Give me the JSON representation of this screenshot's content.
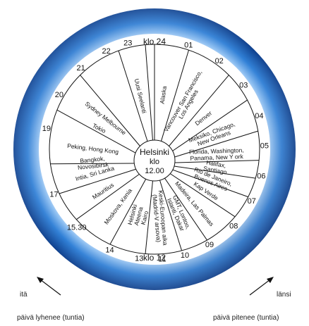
{
  "clock": {
    "top_label": "klo 24",
    "bottom_label": "klo 12",
    "hours": [
      {
        "label": "01",
        "deg": 18
      },
      {
        "label": "02",
        "deg": 36
      },
      {
        "label": "03",
        "deg": 54
      },
      {
        "label": "04",
        "deg": 72
      },
      {
        "label": "05",
        "deg": 88
      },
      {
        "label": "06",
        "deg": 104
      },
      {
        "label": "07",
        "deg": 118
      },
      {
        "label": "08",
        "deg": 134
      },
      {
        "label": "09",
        "deg": 150
      },
      {
        "label": "10",
        "deg": 164
      },
      {
        "label": "11",
        "deg": 176
      },
      {
        "label": "13",
        "deg": 188
      },
      {
        "label": "14",
        "deg": 204
      },
      {
        "label": "15.30",
        "deg": 225
      },
      {
        "label": "17",
        "deg": 246
      },
      {
        "label": "19",
        "deg": 281
      },
      {
        "label": "20",
        "deg": 300
      },
      {
        "label": "21",
        "deg": 318
      },
      {
        "label": "22",
        "deg": 334
      },
      {
        "label": "23",
        "deg": 346
      }
    ],
    "spokes_deg": [
      0,
      19,
      45,
      62,
      80,
      96,
      106,
      117,
      130,
      150,
      165,
      185,
      205,
      228,
      245,
      262,
      292,
      315,
      340,
      355
    ]
  },
  "center": {
    "city": "Helsinki",
    "klo": "klo",
    "time": "12.00"
  },
  "cities": [
    {
      "lines": [
        "Alaska"
      ],
      "deg": 8
    },
    {
      "lines": [
        "Vancouver San Francisco,",
        "Los Angeles"
      ],
      "deg": 30
    },
    {
      "lines": [
        "Denver"
      ],
      "deg": 52
    },
    {
      "lines": [
        "Meksiko, Chicago,",
        "New Orleans"
      ],
      "deg": 70
    },
    {
      "lines": [
        "Florida, Washington,",
        "Panama, New Y  ork"
      ],
      "deg": 88
    },
    {
      "lines": [
        "Halifax,",
        "Santiago"
      ],
      "deg": 100
    },
    {
      "lines": [
        "Rio de Janeiro,",
        "Buenos Aires"
      ],
      "deg": 112
    },
    {
      "lines": [
        "Kap Verde"
      ],
      "deg": 124
    },
    {
      "lines": [
        "Madeira, Las Palmas"
      ],
      "deg": 140
    },
    {
      "lines": [
        "GMT, Lontoo,",
        "Islanti, Dakar"
      ],
      "deg": 157
    },
    {
      "lines": [
        "Keski-Euroopan aika",
        "(Madrid-V  arsova)"
      ],
      "deg": 175
    },
    {
      "lines": [
        "Helsinki",
        "Ateena",
        "Kairo"
      ],
      "deg": 195
    },
    {
      "lines": [
        "Moskova, Kenia"
      ],
      "deg": 216
    },
    {
      "lines": [
        "Mauritius"
      ],
      "deg": 236
    },
    {
      "lines": [
        "Intia, Sri Lanka"
      ],
      "deg": 254
    },
    {
      "lines": [
        "Bangkok,",
        "Novosibirsk"
      ],
      "deg": 264
    },
    {
      "lines": [
        "Peking, Hong Kong"
      ],
      "deg": 277
    },
    {
      "lines": [
        "Tokio"
      ],
      "deg": 297
    },
    {
      "lines": [
        "Sydney Melbourne"
      ],
      "deg": 308
    },
    {
      "lines": [
        "Uusi Seelanti"
      ],
      "deg": 347
    }
  ],
  "directions": {
    "east": "itä",
    "west": "länsi",
    "east_caption": "päivä lyhenee (tuntia)",
    "west_caption": "päivä pitenee (tuntia)"
  },
  "colors": {
    "ring_outer": "#1a4f9c",
    "ring_mid": "#2f7fd6",
    "ring_highlight": "#e8f2ff",
    "line": "#111111"
  }
}
